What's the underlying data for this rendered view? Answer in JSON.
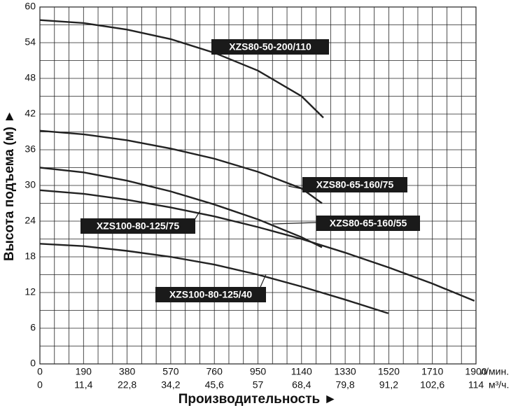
{
  "chart_data": {
    "type": "line",
    "y_label": "Высота подъема (м) ►",
    "x_label": "Производительность ►",
    "x_unit": "л/мин.",
    "x2_unit": "м³/ч.",
    "xlim": [
      0,
      1900
    ],
    "ylim": [
      0,
      60
    ],
    "xticks": [
      0,
      190,
      380,
      570,
      760,
      950,
      1140,
      1330,
      1520,
      1710,
      1900
    ],
    "x2ticks": [
      0,
      {
        "value": 11.4,
        "label": "11,4"
      },
      {
        "value": 22.8,
        "label": "22,8"
      },
      {
        "value": 34.2,
        "label": "34,2"
      },
      {
        "value": 45.6,
        "label": "45,6"
      },
      57,
      {
        "value": 68.4,
        "label": "68,4"
      },
      {
        "value": 79.8,
        "label": "79,8"
      },
      {
        "value": 91.2,
        "label": "91,2"
      },
      {
        "value": 102.6,
        "label": "102,6"
      },
      114
    ],
    "yticks": [
      0,
      6,
      12,
      18,
      24,
      30,
      36,
      42,
      48,
      54,
      60
    ],
    "grid": true,
    "series": [
      {
        "name": "XZS80-50-200/110",
        "color": "#222222",
        "x": [
          0,
          190,
          380,
          570,
          760,
          950,
          1140,
          1235
        ],
        "values": [
          57.8,
          57.3,
          56.2,
          54.6,
          52.3,
          49.3,
          45,
          41.4
        ]
      },
      {
        "name": "XZS80-65-160/75",
        "color": "#222222",
        "x": [
          0,
          190,
          380,
          570,
          760,
          950,
          1140,
          1229
        ],
        "values": [
          39.2,
          38.6,
          37.6,
          36.2,
          34.5,
          32.3,
          29.5,
          27
        ]
      },
      {
        "name": "XZS100-80-125/75",
        "color": "#222222",
        "x": [
          0,
          190,
          380,
          570,
          760,
          950,
          1140,
          1229
        ],
        "values": [
          33,
          32.2,
          30.8,
          29,
          26.8,
          24.3,
          21.3,
          19.6
        ]
      },
      {
        "name": "XZS80-65-160/55",
        "color": "#222222",
        "x": [
          0,
          190,
          380,
          570,
          760,
          950,
          1140,
          1330,
          1520,
          1710,
          1893
        ],
        "values": [
          29.2,
          28.6,
          27.6,
          26.3,
          24.8,
          23,
          21,
          18.7,
          16.2,
          13.5,
          10.6
        ]
      },
      {
        "name": "XZS100-80-125/40",
        "color": "#222222",
        "x": [
          0,
          190,
          380,
          570,
          760,
          950,
          1140,
          1330,
          1518
        ],
        "values": [
          20.2,
          19.8,
          19,
          18,
          16.7,
          15,
          13,
          10.8,
          8.5
        ]
      }
    ]
  }
}
